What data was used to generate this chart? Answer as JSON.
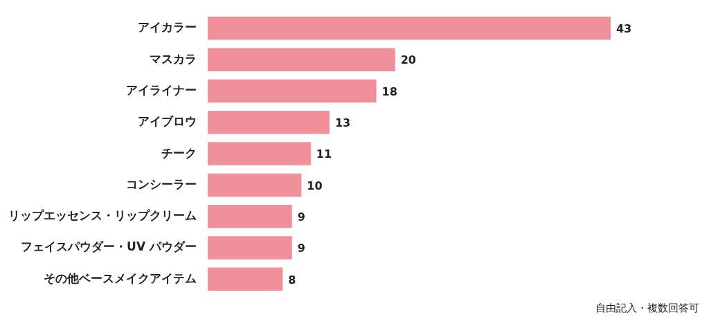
{
  "chart_data": {
    "type": "bar",
    "orientation": "horizontal",
    "categories": [
      "アイカラー",
      "マスカラ",
      "アイライナー",
      "アイブロウ",
      "チーク",
      "コンシーラー",
      "リップエッセンス・リップクリーム",
      "フェイスパウダー・UV パウダー",
      "その他ベースメイクアイテム"
    ],
    "values": [
      43,
      20,
      18,
      13,
      11,
      10,
      9,
      9,
      8
    ],
    "color": "#f0909a",
    "data_labels": true,
    "tick_labels": "y",
    "annotations": [
      "自由記入・複数回答可"
    ]
  }
}
